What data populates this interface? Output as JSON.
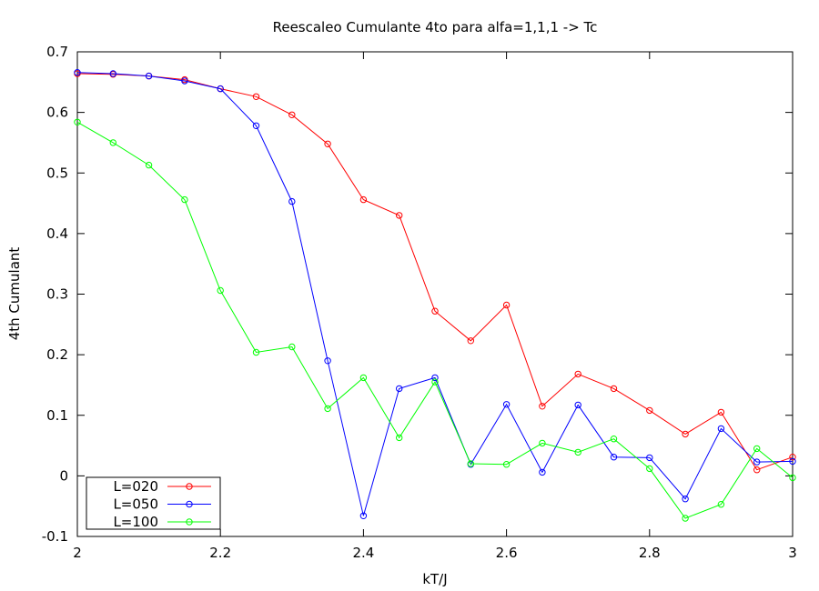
{
  "chart_data": {
    "type": "line",
    "title": "Reescaleo Cumulante 4to para alfa=1,1,1 -> Tc",
    "xlabel": "kT/J",
    "ylabel": "4th Cumulant",
    "xlim": [
      2,
      3
    ],
    "ylim": [
      -0.1,
      0.7
    ],
    "xticks": [
      2,
      2.2,
      2.4,
      2.6,
      2.8,
      3
    ],
    "xtick_labels": [
      "2",
      "2.2",
      "2.4",
      "2.6",
      "2.8",
      "3"
    ],
    "yticks": [
      -0.1,
      0,
      0.1,
      0.2,
      0.3,
      0.4,
      0.5,
      0.6,
      0.7
    ],
    "ytick_labels": [
      "-0.1",
      "0",
      "0.1",
      "0.2",
      "0.3",
      "0.4",
      "0.5",
      "0.6",
      "0.7"
    ],
    "grid": false,
    "legend_position": "bottom-left",
    "x": [
      2.0,
      2.05,
      2.1,
      2.15,
      2.2,
      2.25,
      2.3,
      2.35,
      2.4,
      2.45,
      2.5,
      2.55,
      2.6,
      2.65,
      2.7,
      2.75,
      2.8,
      2.85,
      2.9,
      2.95,
      3.0
    ],
    "series": [
      {
        "name": "L=020",
        "color": "#ff0000",
        "values": [
          0.664,
          0.663,
          0.66,
          0.654,
          0.639,
          0.626,
          0.596,
          0.548,
          0.456,
          0.43,
          0.272,
          0.223,
          0.282,
          0.115,
          0.168,
          0.144,
          0.108,
          0.069,
          0.105,
          0.01,
          0.031
        ]
      },
      {
        "name": "L=050",
        "color": "#0000ff",
        "values": [
          0.666,
          0.664,
          0.66,
          0.652,
          0.639,
          0.578,
          0.453,
          0.19,
          -0.066,
          0.144,
          0.162,
          0.019,
          0.118,
          0.006,
          0.117,
          0.031,
          0.03,
          -0.038,
          0.078,
          0.023,
          0.024
        ]
      },
      {
        "name": "L=100",
        "color": "#00ff00",
        "values": [
          0.584,
          0.55,
          0.513,
          0.456,
          0.306,
          0.204,
          0.213,
          0.111,
          0.162,
          0.063,
          0.155,
          0.02,
          0.019,
          0.054,
          0.039,
          0.061,
          0.012,
          -0.07,
          -0.047,
          0.045,
          -0.003
        ]
      }
    ]
  }
}
